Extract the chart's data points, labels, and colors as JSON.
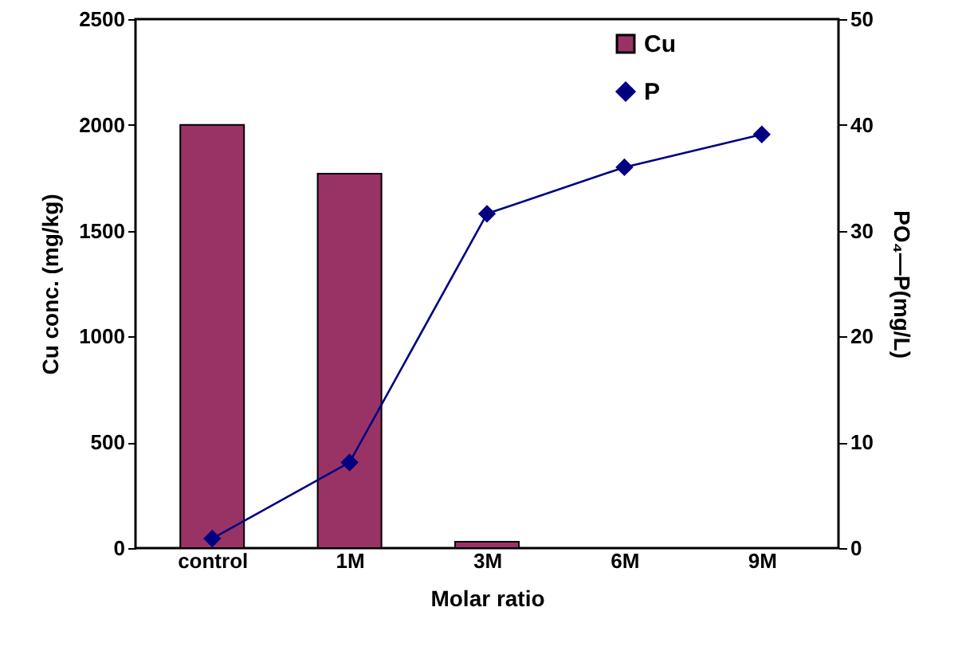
{
  "chart_data": {
    "type": "bar",
    "xlabel": "Molar ratio",
    "ylabel": "Cu conc. (mg/kg)",
    "y2label": "PO₄—P(mg/L)",
    "categories": [
      "control",
      "1M",
      "3M",
      "6M",
      "9M"
    ],
    "series": [
      {
        "name": "Cu",
        "color": "#993366",
        "values": [
          2000,
          1770,
          30,
          null,
          null
        ]
      },
      {
        "name": "P",
        "type": "line",
        "axis": "y2",
        "color": "#000080",
        "marker": "diamond",
        "values": [
          0.9,
          8.1,
          31.6,
          36.0,
          39.1
        ]
      }
    ],
    "ylim": [
      0,
      2500
    ],
    "yticks": [
      0,
      500,
      1000,
      1500,
      2000,
      2500
    ],
    "y2lim": [
      0,
      50
    ],
    "y2ticks": [
      0,
      10,
      20,
      30,
      40,
      50
    ],
    "legend": "top right",
    "grid": false
  }
}
